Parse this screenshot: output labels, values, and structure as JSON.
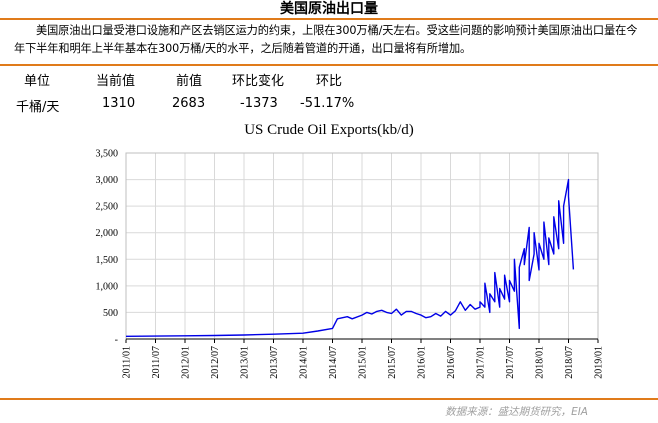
{
  "header": {
    "title": "美国原油出口量",
    "description": "美国原油出口量受港口设施和产区去销区运力的约束，上限在300万桶/天左右。受这些问题的影响预计美国原油出口量在今年下半年和明年上半年基本在300万桶/天的水平，之后随着管道的开通，出口量将有所增加。"
  },
  "stats": {
    "headers": [
      "单位",
      "当前值",
      "前值",
      "环比变化",
      "环比"
    ],
    "values": [
      "千桶/天",
      "1310",
      "2683",
      "-1373",
      "-51.17%"
    ]
  },
  "source": "数据来源：盛达期货研究，EIA",
  "colors": {
    "accent": "#e07b1a",
    "series": "#0000e6",
    "grid": "#d9d9d9"
  },
  "chart_data": {
    "type": "line",
    "title": "US Crude Oil Exports(kb/d)",
    "xlabel": "",
    "ylabel": "",
    "xlim": [
      "2011/01",
      "2019/01"
    ],
    "ylim": [
      0,
      3500
    ],
    "yticks": [
      0,
      500,
      1000,
      1500,
      2000,
      2500,
      3000,
      3500
    ],
    "ytick_labels": [
      "-",
      "500",
      "1,000",
      "1,500",
      "2,000",
      "2,500",
      "3,000",
      "3,500"
    ],
    "xtick_labels": [
      "2011/01",
      "2011/07",
      "2012/01",
      "2012/07",
      "2013/01",
      "2013/07",
      "2014/01",
      "2014/07",
      "2015/01",
      "2015/07",
      "2016/01",
      "2016/07",
      "2017/01",
      "2017/07",
      "2018/01",
      "2018/07",
      "2019/01"
    ],
    "grid": true,
    "series": [
      {
        "x": [
          "2011/01",
          "2011/07",
          "2012/01",
          "2012/07",
          "2013/01",
          "2013/07",
          "2014/01",
          "2014/04",
          "2014/07",
          "2014/08",
          "2014/10",
          "2014/11",
          "2015/01",
          "2015/02",
          "2015/03",
          "2015/04",
          "2015/05",
          "2015/06",
          "2015/07",
          "2015/08",
          "2015/09",
          "2015/10",
          "2015/11",
          "2015/12",
          "2016/01",
          "2016/02",
          "2016/03",
          "2016/04",
          "2016/05",
          "2016/06",
          "2016/07",
          "2016/08",
          "2016/09",
          "2016/10",
          "2016/11",
          "2016/12",
          "2017/01",
          "2017/01",
          "2017/02",
          "2017/02",
          "2017/03",
          "2017/03",
          "2017/04",
          "2017/04",
          "2017/05",
          "2017/05",
          "2017/06",
          "2017/06",
          "2017/07",
          "2017/07",
          "2017/08",
          "2017/08",
          "2017/09",
          "2017/09",
          "2017/10",
          "2017/10",
          "2017/11",
          "2017/11",
          "2017/12",
          "2017/12",
          "2018/01",
          "2018/01",
          "2018/02",
          "2018/02",
          "2018/03",
          "2018/03",
          "2018/04",
          "2018/04",
          "2018/05",
          "2018/05",
          "2018/06",
          "2018/06",
          "2018/07",
          "2018/07",
          "2018/08"
        ],
        "values": [
          50,
          55,
          60,
          65,
          75,
          90,
          110,
          150,
          200,
          380,
          420,
          380,
          450,
          500,
          470,
          520,
          540,
          500,
          480,
          560,
          450,
          520,
          520,
          480,
          450,
          400,
          420,
          480,
          430,
          520,
          450,
          530,
          700,
          540,
          650,
          560,
          600,
          700,
          600,
          1050,
          500,
          850,
          700,
          1250,
          600,
          950,
          750,
          1200,
          700,
          1100,
          900,
          1500,
          200,
          1350,
          1700,
          1400,
          2100,
          1100,
          1600,
          2000,
          1300,
          1800,
          1500,
          2200,
          1400,
          1900,
          1600,
          2300,
          1700,
          2600,
          1800,
          2500,
          3000,
          2683,
          1310
        ]
      }
    ]
  }
}
